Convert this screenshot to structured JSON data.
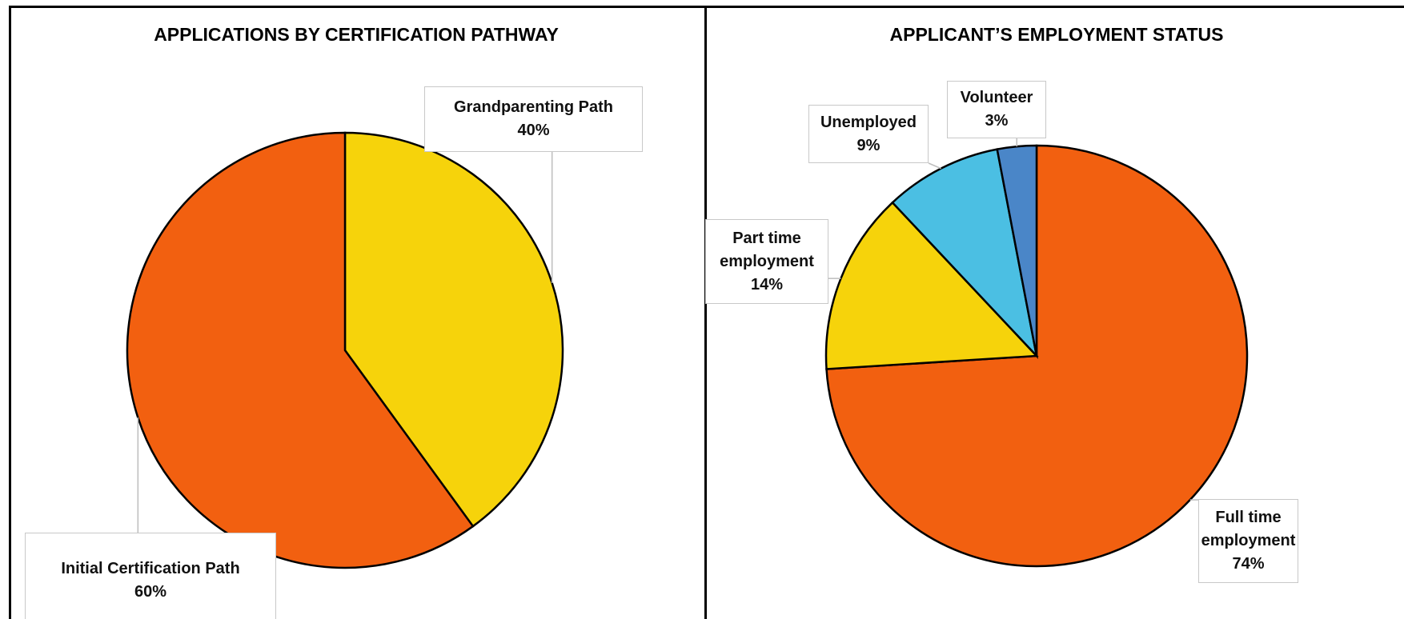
{
  "chart_data": [
    {
      "type": "pie",
      "title": "APPLICATIONS BY CERTIFICATION PATHWAY",
      "categories": [
        "Grandparenting Path",
        "Initial Certification Path"
      ],
      "values": [
        40,
        60
      ],
      "value_labels": [
        "40%",
        "60%"
      ],
      "colors": [
        "#f6d30b",
        "#f26010"
      ]
    },
    {
      "type": "pie",
      "title": "APPLICANT’S EMPLOYMENT STATUS",
      "categories": [
        "Full time employment",
        "Part time employment",
        "Unemployed",
        "Volunteer"
      ],
      "values": [
        74,
        14,
        9,
        3
      ],
      "value_labels": [
        "74%",
        "14%",
        "9%",
        "3%"
      ],
      "colors": [
        "#f26010",
        "#f6d30b",
        "#4bbfe3",
        "#4a86c8"
      ]
    }
  ]
}
